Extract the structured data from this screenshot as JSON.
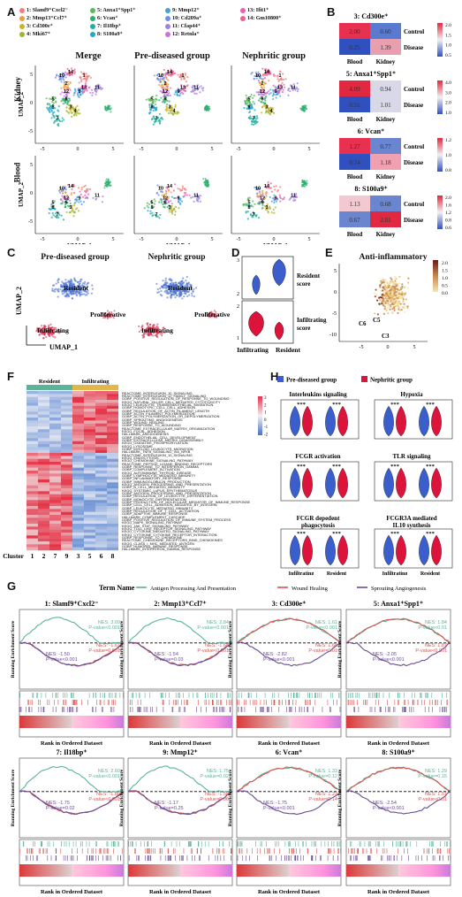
{
  "panelA": {
    "label": "A",
    "legend": [
      {
        "text": "1: Slamf9⁺Cxcl2⁻",
        "color": "#f08080"
      },
      {
        "text": "2: Mmp13⁺Ccl7⁺",
        "color": "#e8a040"
      },
      {
        "text": "3: Cd300e⁺",
        "color": "#c8b428"
      },
      {
        "text": "4: Mki67⁺",
        "color": "#a0b430"
      },
      {
        "text": "5: Anxa1⁺Spp1⁺",
        "color": "#5cb85c"
      },
      {
        "text": "6: Vcan⁺",
        "color": "#2eaf6e"
      },
      {
        "text": "7: Il18bp⁺",
        "color": "#20b0a0"
      },
      {
        "text": "8: S100a9⁺",
        "color": "#20a8c8"
      },
      {
        "text": "9: Mmp12⁺",
        "color": "#40a0e0"
      },
      {
        "text": "10: Cd209a⁺",
        "color": "#7090e8"
      },
      {
        "text": "11: Cfap44⁺",
        "color": "#a080e8"
      },
      {
        "text": "12: Retnla⁺",
        "color": "#d070d8"
      },
      {
        "text": "13: Ifit1⁺",
        "color": "#e860b8"
      },
      {
        "text": "14: Gm10800⁺",
        "color": "#f06090"
      }
    ],
    "col_titles": [
      "Merge",
      "Pre-diseased group",
      "Nephritic group"
    ],
    "row_labels": [
      "Kidney",
      "Blood"
    ],
    "ylabel": "UMAP_2",
    "xlabel": "UMAP_1",
    "xticks": [
      "-5",
      "0",
      "5"
    ],
    "yticks_kidney": [
      "5",
      "0",
      "-5"
    ],
    "yticks_blood": [
      "5",
      "0",
      "-5"
    ]
  },
  "panelB": {
    "label": "B",
    "blocks": [
      {
        "title": "3: Cd300e⁺",
        "cells": [
          [
            "2.00",
            "0.60"
          ],
          [
            "0.25",
            "1.39"
          ]
        ],
        "colors": [
          [
            "#e83050",
            "#5a7ad0"
          ],
          [
            "#3050c0",
            "#e8a0b0"
          ]
        ],
        "scale": [
          "2.0",
          "1.5",
          "1.0",
          "0.5"
        ]
      },
      {
        "title": "5: Anxa1⁺Spp1⁺",
        "cells": [
          [
            "4.09",
            "0.94"
          ],
          [
            "0.51",
            "1.01"
          ]
        ],
        "colors": [
          [
            "#e02840",
            "#d8d8e8"
          ],
          [
            "#3050c0",
            "#d8d8e8"
          ]
        ],
        "scale": [
          "4.0",
          "3.0",
          "2.0",
          "1.0"
        ]
      },
      {
        "title": "6: Vcan⁺",
        "cells": [
          [
            "1.27",
            "0.77"
          ],
          [
            "0.74",
            "1.18"
          ]
        ],
        "colors": [
          [
            "#e83050",
            "#6a86d0"
          ],
          [
            "#3050c0",
            "#f0a0b0"
          ]
        ],
        "scale": [
          "1.2",
          "1.0",
          "0.8"
        ]
      },
      {
        "title": "8: S100a9⁺",
        "cells": [
          [
            "1.13",
            "0.68"
          ],
          [
            "0.67",
            "2.01"
          ]
        ],
        "colors": [
          [
            "#f4c8d0",
            "#6a86d0"
          ],
          [
            "#6a86d0",
            "#e02840"
          ]
        ],
        "scale": [
          "2.0",
          "1.6",
          "1.2",
          "0.8",
          "0.6"
        ]
      }
    ],
    "row_names": [
      "Control",
      "Disease"
    ],
    "col_names": [
      "Blood",
      "Kidney"
    ]
  },
  "panelC": {
    "label": "C",
    "titles": [
      "Pre-diseased group",
      "Nephritic group"
    ],
    "annotations": [
      "Resident",
      "Proliferative",
      "Infiltrating"
    ],
    "xlabel": "UMAP_1",
    "ylabel": "UMAP_2"
  },
  "panelD": {
    "label": "D",
    "scores": [
      "Resident score",
      "Infiltrating score"
    ],
    "xcats": [
      "Infiltrating",
      "Resident"
    ],
    "yticks_top": [
      "3",
      "2"
    ],
    "yticks_bottom": [
      "2",
      "1"
    ]
  },
  "panelE": {
    "label": "E",
    "title": "Anti-inflammatory",
    "scale": [
      "2.0",
      "1.5",
      "1.0",
      "0.5",
      "0.0"
    ],
    "annotations": [
      "C6",
      "C5",
      "C3"
    ],
    "xticks": [
      "-5",
      "0",
      "5"
    ],
    "yticks": [
      "5",
      "0",
      "-5",
      "-10"
    ]
  },
  "panelF": {
    "label": "F",
    "groups": [
      "Resident",
      "Infiltrating"
    ],
    "clusters_label": "Cluster",
    "clusters": [
      "1",
      "2",
      "7",
      "9",
      "3",
      "5",
      "6",
      "8"
    ],
    "scale": [
      "3",
      "2",
      "1",
      "0",
      "-1",
      "-2"
    ],
    "rows": [
      "REACTOME_INTERLEUKIN_10_SIGNALING",
      "REACTOME_INTERLEUKIN_12_FAMILY_SIGNALING",
      "GOBP_POSITIVE_REGULATION_OF_RESPONSE_TO_WOUNDING",
      "KEGG_NATURAL_KILLER_CELL_MEDIATED_CYTOTOXICITY",
      "KEGG_LEUKOCYTE_TRANSENDOTHELIAL_MIGRATION",
      "GOBP_HOMOTYPIC_CELL_CELL_ADHESION",
      "GOBP_REGULATION_OF_ACTIN_FILAMENT_LENGTH",
      "GOBP_ACTIN_FILAMENT_POLYMERIZATION",
      "GOBP_ACTIN_POLYMERIZATION_OR_DEPOLYMERIZATION",
      "GOBP_SPROUTING_ANGIOGENESIS",
      "GOBP_WOUND_HEALING",
      "GOBP_RESPONSE_TO_WOUNDING",
      "REACTOME_EXTRACELLULAR_MATRIX_ORGANIZATION",
      "KEGG_FOCAL_ADHESION",
      "HALLMARK_ANGIOGENESIS",
      "GOBP_ENDOTHELIAL_CELL_DEVELOPMENT",
      "GOBP_EXTRACELLULAR_MATRIX_DISASSEMBLY",
      "KEGG_OXIDATIVE_PHOSPHORYLATION",
      "KEGG_LYSOSOME",
      "GOBP_MYELOID_LEUKOCYTE_MIGRATION",
      "HALLMARK_TNFA_SIGNALING_VIA_NFKB",
      "REACTOME_INTERLEUKIN_10_SIGNALING",
      "KEGG_ENDOCYTOSIS",
      "KEGG_CHEMOKINE_SIGNALING_PATHWAY",
      "REACTOME_PEPTIDE_LIGAND_BINDING_RECEPTORS",
      "GOBP_RESPONSE_TO_INTERFERON_GAMMA",
      "GOBP_COMPLEMENT_ACTIVATION",
      "KEGG_AUTOIMMUNE_THYROID_DISEASE",
      "GOBP_LYMPHOCYTE_MEDIATED_IMMUNITY",
      "GOBP_INFLAMMATORY_RESPONSE",
      "GOBP_IMMUNOGLOBULIN_PRODUCTION",
      "KEGG_ANTIGEN_PROCESSING_AND_PRESENTATION",
      "GOBP_B_CELL_MEDIATED_IMMUNITY",
      "KEGG_SYSTEMIC_LUPUS_ERYTHEMATOSUS",
      "GOBP_ANTIGEN_PROCESSING_AND_PRESENTATION",
      "GOBP_REGULATION_OF_LEUKOCYTE_DIFFERENTIATION",
      "GOBP_MONOCYTE_DIFFERENTIATION",
      "GOBP_PRODUCTION_OF_MOLECULAR_MEDIATOR_OF_IMMUNE_RESPONSE",
      "GOBP_CELL_CELL_ADHESION_MEDIATED_BY_INTEGRIN",
      "GOBP_LEUKOCYTE_MEDIATED_IMMUNITY",
      "GOBP_REGULATION_OF_T_CELL_ACTIVATION",
      "GOBP_ADAPTIVE_IMMUNE_RESPONSE",
      "HALLMARK_COMPLEMENT_CASCADE",
      "GOBP_POSITIVE_REGULATION_OF_IMMUNE_SYSTEM_PROCESS",
      "KEGG_MAPK_SIGNALING_PATHWAY",
      "KEGG_JAK_STAT_SIGNALING_PATHWAY",
      "KEGG_TOLL_LIKE_RECEPTOR_SIGNALING_PATHWAY",
      "KEGG_CYTOKINE_MEDIATED_SIGNALING_PATHWAY",
      "KEGG_CYTOKINE_CYTOKINE_RECEPTOR_INTERACTION",
      "GOBP_RESPONSE_TO_CHEMOKINE",
      "REACTOME_CHEMOKINE_RECEPTORS_BIND_CHEMOKINES",
      "KEGG_CLASS_I_MHC_MEDIATED_ANTIGEN",
      "GOBP_HUMORAL_IMMUNE_RESPONSE",
      "HALLMARK_INTERFERON_GAMMA_RESPONSE"
    ]
  },
  "panelH": {
    "label": "H",
    "legend": [
      {
        "text": "Pre-diseased group",
        "color": "#3a5fcd"
      },
      {
        "text": "Nephritic group",
        "color": "#dc143c"
      }
    ],
    "plots": [
      {
        "title": "Interleukins signaling",
        "stars": [
          "***",
          "***"
        ]
      },
      {
        "title": "Hypoxia",
        "stars": [
          "***",
          "***"
        ]
      },
      {
        "title": "FCGR activation",
        "stars": [
          "***",
          "***"
        ]
      },
      {
        "title": "TLR signaling",
        "stars": [
          "***",
          "***"
        ]
      },
      {
        "title": "FCGR depedent phagocytosis",
        "stars": [
          "***",
          "***"
        ]
      },
      {
        "title": "FCGR3A mediated IL10 synthesis",
        "stars": [
          "***",
          "***"
        ]
      }
    ],
    "xcats": [
      "Infiltrating",
      "Resident"
    ]
  },
  "panelG": {
    "label": "G",
    "term_label": "Term Name",
    "terms": [
      {
        "text": "Antigen Processing And Presentation",
        "color": "#5bb39a"
      },
      {
        "text": "Wound Healing",
        "color": "#d9534f"
      },
      {
        "text": "Sprouting Angiogenesis",
        "color": "#6a4c93"
      }
    ],
    "ylabel": "Running Enrichment Score",
    "xlabel": "Rank in Ordered Dataset",
    "plots": [
      {
        "title": "1: Slamf9⁺Cxcl2⁻",
        "annots": [
          "NES: 3.09",
          "P-value<0.001",
          "NES: -1.67",
          "P-value=0.001",
          "NES: -1.50",
          "P-value<0.001"
        ]
      },
      {
        "title": "2: Mmp13⁺Ccl7⁺",
        "annots": [
          "NES: 2.84",
          "P-value<0.001",
          "NES: -1.68",
          "P-value<0.001",
          "NES: -1.54",
          "P-value=0.03"
        ]
      },
      {
        "title": "3: Cd300e⁺",
        "annots": [
          "NES: 1.61",
          "P-value<0.001",
          "NES: 1.68",
          "P-value=0.01",
          "NES: -2.82",
          "P-value<0.001"
        ]
      },
      {
        "title": "5: Anxa1⁺Spp1⁺",
        "annots": [
          "NES: 1.84",
          "P-value<0.01",
          "NES: 1.87",
          "P-value<0.001",
          "NES: -2.05",
          "P-value<0.001"
        ]
      },
      {
        "title": "7: Il18bp⁺",
        "annots": [
          "NES: 2.60",
          "P-value<0.001",
          "NES: -1.80",
          "P-value<0.001",
          "NES: -1.75",
          "P-value=0.02"
        ]
      },
      {
        "title": "9: Mmp12⁺",
        "annots": [
          "NES: 1.75",
          "P-value=0.02",
          "NES: -1.58",
          "P-value=0.06",
          "NES: -1.17",
          "P-value=0.25"
        ]
      },
      {
        "title": "6: Vcan⁺",
        "annots": [
          "NES: 1.33",
          "P-value=0.12",
          "NES: 1.23",
          "P-value=0.14",
          "NES: -1.75",
          "P-value<0.001"
        ]
      },
      {
        "title": "8: S100a9⁺",
        "annots": [
          "NES: 1.29",
          "P-value=0.15",
          "NES: 1.51",
          "P-value<0.01",
          "NES: -2.54",
          "P-value<0.001"
        ]
      }
    ]
  }
}
